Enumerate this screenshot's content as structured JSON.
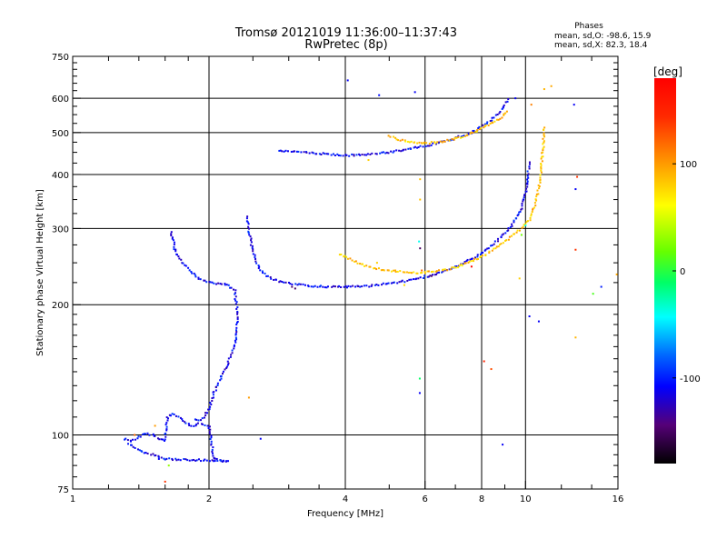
{
  "chart_data": {
    "type": "scatter",
    "title": "Tromsø 20121019 11:36:00–11:37:43",
    "subtitle": "RwPretec (8p)",
    "xlabel": "Frequency [MHz]",
    "ylabel": "Stationary phase Virtual Height [km]",
    "x_scale": "log",
    "y_scale": "log",
    "xlim": [
      1,
      16
    ],
    "ylim": [
      75,
      750
    ],
    "x_ticks": [
      1,
      2,
      4,
      6,
      8,
      10,
      16
    ],
    "y_ticks": [
      75,
      100,
      200,
      300,
      400,
      500,
      600,
      750
    ],
    "x_tick_labels": [
      "1",
      "2",
      "4",
      "6",
      "8",
      "10",
      "16"
    ],
    "y_tick_labels": [
      "75",
      "100",
      "200",
      "300",
      "400",
      "500",
      "600",
      "750"
    ],
    "grid": true,
    "phase_box": {
      "title": "Phases",
      "line1": "mean, sd,O: -98.6, 15.9",
      "line2": "mean, sd,X:  82.3, 18.4"
    },
    "colorbar": {
      "label": "[deg]",
      "range": [
        -180,
        180
      ],
      "ticks": [
        100,
        0,
        -100
      ],
      "tick_labels": [
        "100",
        "0",
        "-100"
      ]
    },
    "traces": [
      {
        "name": "O-mode F1 low",
        "phase": -110,
        "points": [
          [
            2.43,
            320
          ],
          [
            2.46,
            290
          ],
          [
            2.5,
            265
          ],
          [
            2.55,
            250
          ],
          [
            2.6,
            240
          ],
          [
            2.7,
            232
          ],
          [
            2.8,
            228
          ],
          [
            2.9,
            225
          ],
          [
            3.0,
            224
          ],
          [
            3.2,
            222
          ],
          [
            3.4,
            221
          ],
          [
            3.6,
            220
          ],
          [
            3.8,
            220
          ],
          [
            4.0,
            220
          ],
          [
            4.2,
            220
          ],
          [
            4.5,
            221
          ],
          [
            4.8,
            223
          ],
          [
            5.0,
            224
          ],
          [
            5.3,
            226
          ],
          [
            5.6,
            228
          ],
          [
            6.0,
            232
          ],
          [
            6.4,
            236
          ],
          [
            6.8,
            241
          ],
          [
            7.2,
            248
          ],
          [
            7.6,
            255
          ],
          [
            8.0,
            263
          ],
          [
            8.4,
            273
          ],
          [
            8.8,
            285
          ],
          [
            9.2,
            300
          ],
          [
            9.5,
            315
          ],
          [
            9.8,
            335
          ],
          [
            10.0,
            360
          ],
          [
            10.1,
            390
          ],
          [
            10.2,
            430
          ]
        ]
      },
      {
        "name": "O-mode F2",
        "phase": -110,
        "points": [
          [
            2.85,
            455
          ],
          [
            3.0,
            452
          ],
          [
            3.2,
            450
          ],
          [
            3.4,
            448
          ],
          [
            3.6,
            446
          ],
          [
            3.8,
            444
          ],
          [
            4.0,
            443
          ],
          [
            4.2,
            443
          ],
          [
            4.4,
            444
          ],
          [
            4.6,
            446
          ],
          [
            4.8,
            448
          ],
          [
            5.0,
            450
          ],
          [
            5.3,
            455
          ],
          [
            5.6,
            460
          ],
          [
            6.0,
            466
          ],
          [
            6.4,
            472
          ],
          [
            6.8,
            480
          ],
          [
            7.2,
            490
          ],
          [
            7.6,
            500
          ],
          [
            8.0,
            515
          ],
          [
            8.4,
            535
          ],
          [
            8.8,
            560
          ],
          [
            9.0,
            580
          ],
          [
            9.2,
            600
          ]
        ]
      },
      {
        "name": "X-mode F1",
        "phase": 85,
        "points": [
          [
            3.9,
            262
          ],
          [
            4.1,
            255
          ],
          [
            4.3,
            249
          ],
          [
            4.6,
            243
          ],
          [
            5.0,
            240
          ],
          [
            5.4,
            238
          ],
          [
            5.8,
            237
          ],
          [
            6.2,
            238
          ],
          [
            6.6,
            240
          ],
          [
            7.0,
            244
          ],
          [
            7.4,
            249
          ],
          [
            7.8,
            255
          ],
          [
            8.2,
            262
          ],
          [
            8.6,
            270
          ],
          [
            9.0,
            280
          ],
          [
            9.4,
            290
          ],
          [
            9.8,
            300
          ],
          [
            10.2,
            315
          ],
          [
            10.5,
            340
          ],
          [
            10.7,
            370
          ],
          [
            10.85,
            420
          ],
          [
            10.95,
            470
          ],
          [
            11.0,
            520
          ]
        ]
      },
      {
        "name": "X-mode F2",
        "phase": 85,
        "points": [
          [
            5.0,
            490
          ],
          [
            5.3,
            480
          ],
          [
            5.6,
            475
          ],
          [
            6.0,
            472
          ],
          [
            6.4,
            475
          ],
          [
            6.8,
            480
          ],
          [
            7.2,
            488
          ],
          [
            7.6,
            498
          ],
          [
            8.0,
            510
          ],
          [
            8.4,
            525
          ],
          [
            8.8,
            540
          ],
          [
            9.2,
            560
          ]
        ]
      },
      {
        "name": "E / sporadic cusp",
        "phase": -110,
        "points": [
          [
            1.65,
            295
          ],
          [
            1.68,
            270
          ],
          [
            1.72,
            255
          ],
          [
            1.78,
            245
          ],
          [
            1.85,
            235
          ],
          [
            1.92,
            228
          ],
          [
            2.0,
            225
          ],
          [
            2.1,
            224
          ],
          [
            2.2,
            223
          ],
          [
            2.28,
            215
          ],
          [
            2.3,
            200
          ],
          [
            2.31,
            185
          ],
          [
            2.3,
            170
          ],
          [
            2.27,
            160
          ],
          [
            2.22,
            150
          ],
          [
            2.16,
            140
          ],
          [
            2.1,
            132
          ],
          [
            2.05,
            125
          ],
          [
            2.0,
            115
          ],
          [
            1.95,
            110
          ],
          [
            1.9,
            108
          ],
          [
            1.85,
            109
          ]
        ]
      },
      {
        "name": "Low-height cluster",
        "phase": -110,
        "points": [
          [
            1.3,
            98
          ],
          [
            1.35,
            97
          ],
          [
            1.4,
            99
          ],
          [
            1.45,
            101
          ],
          [
            1.5,
            100
          ],
          [
            1.55,
            98
          ],
          [
            1.6,
            97
          ],
          [
            1.62,
            110
          ],
          [
            1.66,
            112
          ],
          [
            1.7,
            111
          ],
          [
            1.75,
            108
          ],
          [
            1.8,
            106
          ],
          [
            1.85,
            105
          ],
          [
            1.9,
            106
          ],
          [
            2.0,
            105
          ],
          [
            2.05,
            88
          ],
          [
            2.2,
            87
          ],
          [
            1.6,
            88
          ],
          [
            1.5,
            90
          ],
          [
            1.4,
            92
          ],
          [
            1.32,
            96
          ]
        ]
      }
    ],
    "scatter_points": [
      [
        4.05,
        660,
        -110
      ],
      [
        4.75,
        610,
        -105
      ],
      [
        5.7,
        620,
        -110
      ],
      [
        5.85,
        390,
        85
      ],
      [
        5.85,
        350,
        85
      ],
      [
        5.82,
        280,
        -40
      ],
      [
        5.85,
        270,
        -150
      ],
      [
        5.84,
        135,
        -10
      ],
      [
        5.84,
        125,
        -110
      ],
      [
        8.4,
        142,
        130
      ],
      [
        8.9,
        95,
        -110
      ],
      [
        9.7,
        230,
        80
      ],
      [
        10.2,
        188,
        -110
      ],
      [
        10.7,
        183,
        -110
      ],
      [
        11.4,
        640,
        95
      ],
      [
        11.0,
        630,
        90
      ],
      [
        12.8,
        580,
        -110
      ],
      [
        12.9,
        370,
        -110
      ],
      [
        13.0,
        395,
        140
      ],
      [
        12.9,
        268,
        140
      ],
      [
        12.9,
        168,
        90
      ],
      [
        14.1,
        212,
        10
      ],
      [
        14.7,
        220,
        -100
      ],
      [
        15.9,
        235,
        95
      ],
      [
        9.5,
        600,
        -110
      ],
      [
        10.3,
        580,
        110
      ],
      [
        8.1,
        148,
        150
      ],
      [
        2.45,
        122,
        100
      ],
      [
        2.6,
        98,
        -110
      ],
      [
        1.6,
        78,
        140
      ],
      [
        1.55,
        88,
        -110
      ],
      [
        1.63,
        85,
        30
      ],
      [
        1.52,
        105,
        100
      ],
      [
        1.37,
        100,
        120
      ],
      [
        3.05,
        220,
        -150
      ],
      [
        3.1,
        218,
        -150
      ],
      [
        6.2,
        233,
        -150
      ],
      [
        7.6,
        245,
        175
      ],
      [
        9.8,
        290,
        20
      ],
      [
        10.0,
        305,
        -40
      ],
      [
        10.1,
        380,
        -110
      ],
      [
        9.9,
        350,
        -110
      ],
      [
        5.4,
        222,
        75
      ],
      [
        4.7,
        250,
        80
      ],
      [
        4.5,
        432,
        80
      ],
      [
        5.9,
        240,
        120
      ]
    ]
  }
}
